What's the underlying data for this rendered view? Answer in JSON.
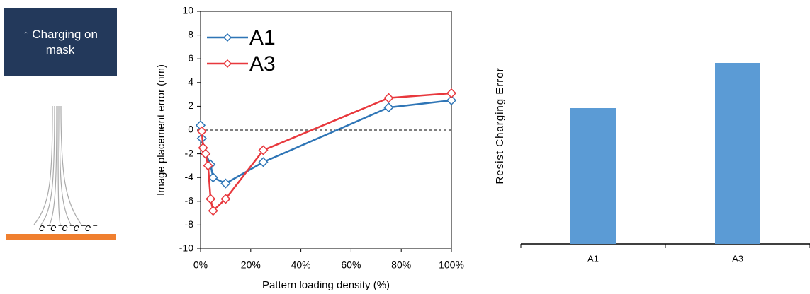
{
  "diagram": {
    "label": "↑ Charging on mask",
    "electrons": "e⁻e⁻e⁻e⁻e⁻"
  },
  "chart_data": [
    {
      "type": "line",
      "xlabel": "Pattern loading density (%)",
      "ylabel": "Image placement error (nm)",
      "xlim": [
        0,
        100
      ],
      "xticks": [
        {
          "value": 0,
          "label": "0%"
        },
        {
          "value": 20,
          "label": "20%"
        },
        {
          "value": 40,
          "label": "40%"
        },
        {
          "value": 60,
          "label": "60%"
        },
        {
          "value": 80,
          "label": "80%"
        },
        {
          "value": 100,
          "label": "100%"
        }
      ],
      "ylim": [
        -10,
        10
      ],
      "yticks": [
        -10,
        -8,
        -6,
        -4,
        -2,
        0,
        2,
        4,
        6,
        8,
        10
      ],
      "hline": 0,
      "legend": "upper-left",
      "series": [
        {
          "name": "A1",
          "color": "#2e75b6",
          "x": [
            0,
            0.5,
            2,
            4,
            5,
            10,
            25,
            75,
            100
          ],
          "values": [
            0.4,
            -0.7,
            -2,
            -2.9,
            -4,
            -4.5,
            -2.7,
            1.9,
            2.5
          ]
        },
        {
          "name": "A3",
          "color": "#e8383d",
          "x": [
            0.5,
            1,
            2,
            3,
            4,
            5,
            10,
            25,
            75,
            100
          ],
          "values": [
            -0.1,
            -1.5,
            -2,
            -3,
            -5.8,
            -6.8,
            -5.8,
            -1.7,
            2.7,
            3.1
          ]
        }
      ]
    },
    {
      "type": "bar",
      "ylabel": "Resist Charging Error",
      "categories": [
        "A1",
        "A3"
      ],
      "values": [
        3,
        4
      ],
      "ylim": [
        0,
        5
      ],
      "color": "#5b9bd5"
    }
  ]
}
